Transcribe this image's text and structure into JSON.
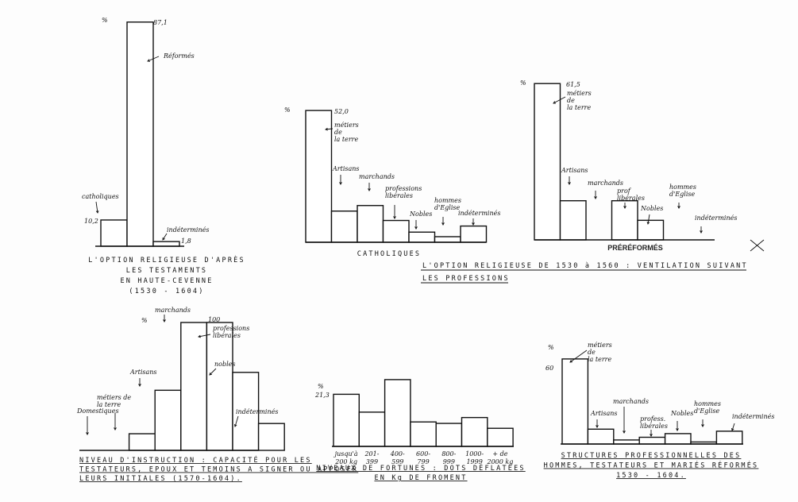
{
  "group_title": [
    "L'OPTION RELIGIEUSE DE 1530 à 1560 : VENTILATION SUIVANT",
    "LES PROFESSIONS"
  ],
  "chart_data": [
    {
      "type": "bar",
      "title": [
        "L'OPTION RELIGIEUSE D'APRÈS",
        "LES TESTAMENTS",
        "EN HAUTE-CEVENNE",
        "(1530 - 1604)"
      ],
      "ylabel": "%",
      "categories": [
        "catholiques",
        "Réformés",
        "indéterminés"
      ],
      "values": [
        10.2,
        87.1,
        1.8
      ],
      "value_labels": [
        "10,2",
        "87,1",
        "1,8"
      ],
      "annotations": [
        [
          "catholiques"
        ],
        [
          "Réformés"
        ],
        [
          "indéterminés"
        ]
      ],
      "ylim": [
        0,
        90
      ]
    },
    {
      "type": "bar",
      "xlabel": "CATHOLIQUES",
      "ylabel": "%",
      "categories": [
        "métiers de la terre",
        "Artisans",
        "marchands",
        "professions libérales",
        "Nobles",
        "hommes d'Eglise",
        "indéterminés"
      ],
      "values": [
        52.0,
        12.3,
        14.5,
        8.6,
        4.0,
        2.2,
        6.4
      ],
      "value_labels": [
        "52,0"
      ],
      "annotations": [
        [
          "métiers",
          "de",
          "la terre"
        ],
        [
          "Artisans"
        ],
        [
          "marchands"
        ],
        [
          "professions",
          "libérales"
        ],
        [
          "Nobles"
        ],
        [
          "hommes",
          "d'Eglise"
        ],
        [
          "indéterminés"
        ]
      ],
      "ylim": [
        0,
        55
      ]
    },
    {
      "type": "bar",
      "xlabel": "PRÉRÉFORMÉS",
      "ylabel": "%",
      "categories": [
        "métiers de la terre",
        "Artisans",
        "marchands",
        "professions libérales",
        "Nobles",
        "hommes d'Eglise",
        "indéterminés"
      ],
      "values": [
        61.5,
        15.4,
        0,
        15.4,
        7.7,
        0,
        0
      ],
      "value_labels": [
        "61,5"
      ],
      "annotations": [
        [
          "métiers",
          "de",
          "la terre"
        ],
        [
          "Artisans"
        ],
        [
          "marchands"
        ],
        [
          "prof",
          "libérales"
        ],
        [
          "Nobles"
        ],
        [
          "hommes",
          "d'Eglise"
        ],
        [
          "indéterminés"
        ]
      ],
      "ylim": [
        0,
        65
      ]
    },
    {
      "type": "bar",
      "title": [
        "NIVEAU D'INSTRUCTION : CAPACITÉ POUR LES",
        "TESTATEURS, EPOUX ET TEMOINS A SIGNER OU APPOSER",
        "LEURS INITIALES (1570-1604)."
      ],
      "ylabel": "%",
      "categories": [
        "Domestiques",
        "métiers de la terre",
        "Artisans",
        "marchands",
        "professions libérales",
        "nobles",
        "indéterminés"
      ],
      "values": [
        0,
        13,
        47,
        100,
        100,
        61,
        21
      ],
      "value_labels": [
        "100"
      ],
      "annotations": [
        [
          "Domestiques"
        ],
        [
          "métiers de",
          "la terre"
        ],
        [
          "Artisans"
        ],
        [
          "marchands"
        ],
        [
          "professions",
          "libérales"
        ],
        [
          "nobles"
        ],
        [
          "indéterminés"
        ]
      ],
      "ylim": [
        0,
        100
      ]
    },
    {
      "type": "bar",
      "title": [
        "NIVEAUX DE FORTUNES : DOTS DÉFLATÉES",
        "EN Kg DE FROMENT"
      ],
      "ylabel": "%",
      "categories": [
        "jusqu'à 200 kg",
        "201-399",
        "400-599",
        "600-799",
        "800-999",
        "1000-1999",
        "+ de 2000 kg"
      ],
      "values": [
        21.3,
        14.0,
        27.3,
        10.0,
        9.4,
        11.8,
        7.4
      ],
      "value_labels": [
        "21,3"
      ],
      "tick_labels": [
        [
          "jusqu'à",
          "200 kg"
        ],
        [
          "201-",
          "399"
        ],
        [
          "400-",
          "599"
        ],
        [
          "600-",
          "799"
        ],
        [
          "800-",
          "999"
        ],
        [
          "1000-",
          "1999"
        ],
        [
          "+ de",
          "2000 kg"
        ]
      ],
      "ylim": [
        0,
        30
      ]
    },
    {
      "type": "bar",
      "title": [
        "STRUCTURES PROFESSIONNELLES DES",
        "HOMMES, TESTATEURS ET MARIÉS RÉFORMÉS",
        "1530 - 1604."
      ],
      "ylabel": "%",
      "yticks": [
        "60"
      ],
      "categories": [
        "métiers de la terre",
        "Artisans",
        "marchands",
        "profess. libérales",
        "Nobles",
        "hommes d'Eglise",
        "indéterminés"
      ],
      "values": [
        63,
        11,
        3,
        5,
        7.7,
        1.5,
        9.5
      ],
      "annotations": [
        [
          "métiers",
          "de",
          "la terre"
        ],
        [
          "Artisans"
        ],
        [
          "marchands"
        ],
        [
          "profess.",
          "libérales"
        ],
        [
          "Nobles"
        ],
        [
          "hommes",
          "d'Eglise"
        ],
        [
          "indéterminés"
        ]
      ],
      "ylim": [
        0,
        65
      ]
    }
  ]
}
